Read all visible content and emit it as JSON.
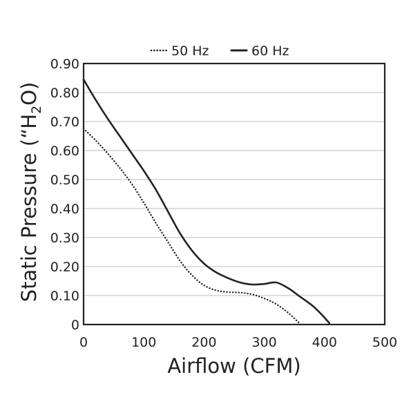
{
  "chart_data": {
    "type": "line",
    "title": "",
    "xlabel": "Airflow (CFM)",
    "ylabel_parts": [
      "Static Pressure (“H",
      "2",
      "O)"
    ],
    "xlim": [
      0,
      500
    ],
    "ylim": [
      0,
      0.9
    ],
    "x_ticks": [
      0,
      100,
      200,
      300,
      400,
      500
    ],
    "y_ticks": [
      0,
      0.1,
      0.2,
      0.3,
      0.4,
      0.5,
      0.6,
      0.7,
      0.8,
      0.9
    ],
    "x_tick_labels": [
      "0",
      "100",
      "200",
      "300",
      "400",
      "500"
    ],
    "y_tick_labels": [
      "0",
      "0.10",
      "0.20",
      "0.30",
      "0.40",
      "0.50",
      "0.60",
      "0.70",
      "0.80",
      "0.90"
    ],
    "grid": "horizontal",
    "legend_position": "top",
    "series": [
      {
        "name": "50 Hz",
        "style": "dotted",
        "color": "#222222",
        "points": [
          [
            0,
            0.675
          ],
          [
            20,
            0.635
          ],
          [
            40,
            0.59
          ],
          [
            60,
            0.54
          ],
          [
            80,
            0.485
          ],
          [
            100,
            0.42
          ],
          [
            120,
            0.35
          ],
          [
            140,
            0.285
          ],
          [
            160,
            0.22
          ],
          [
            180,
            0.17
          ],
          [
            200,
            0.135
          ],
          [
            220,
            0.118
          ],
          [
            240,
            0.112
          ],
          [
            260,
            0.11
          ],
          [
            280,
            0.104
          ],
          [
            300,
            0.09
          ],
          [
            320,
            0.07
          ],
          [
            340,
            0.04
          ],
          [
            358,
            0.005
          ]
        ]
      },
      {
        "name": "60 Hz",
        "style": "solid",
        "color": "#222222",
        "points": [
          [
            0,
            0.845
          ],
          [
            20,
            0.775
          ],
          [
            40,
            0.71
          ],
          [
            60,
            0.65
          ],
          [
            80,
            0.59
          ],
          [
            100,
            0.53
          ],
          [
            120,
            0.465
          ],
          [
            140,
            0.39
          ],
          [
            160,
            0.315
          ],
          [
            180,
            0.255
          ],
          [
            200,
            0.21
          ],
          [
            220,
            0.18
          ],
          [
            240,
            0.16
          ],
          [
            260,
            0.145
          ],
          [
            280,
            0.138
          ],
          [
            300,
            0.14
          ],
          [
            320,
            0.145
          ],
          [
            340,
            0.125
          ],
          [
            360,
            0.095
          ],
          [
            380,
            0.065
          ],
          [
            395,
            0.035
          ],
          [
            408,
            0.005
          ]
        ]
      }
    ]
  }
}
